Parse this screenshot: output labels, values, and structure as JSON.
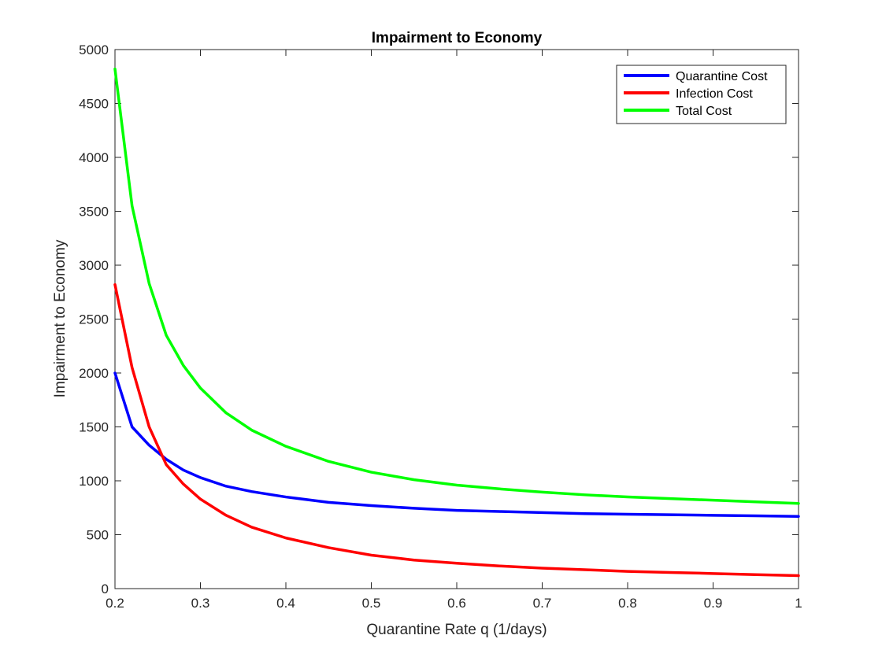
{
  "chart_data": {
    "type": "line",
    "title": "Impairment to Economy",
    "xlabel": "Quarantine Rate q (1/days)",
    "ylabel": "Impairment to Economy",
    "xlim": [
      0.2,
      1
    ],
    "ylim": [
      0,
      5000
    ],
    "xticks": [
      "0.2",
      "0.3",
      "0.4",
      "0.5",
      "0.6",
      "0.7",
      "0.8",
      "0.9",
      "1"
    ],
    "yticks": [
      "0",
      "500",
      "1000",
      "1500",
      "2000",
      "2500",
      "3000",
      "3500",
      "4000",
      "4500",
      "5000"
    ],
    "grid": false,
    "legend_position": "top-right",
    "x": [
      0.2,
      0.22,
      0.24,
      0.26,
      0.28,
      0.3,
      0.33,
      0.36,
      0.4,
      0.45,
      0.5,
      0.55,
      0.6,
      0.65,
      0.7,
      0.75,
      0.8,
      0.85,
      0.9,
      0.95,
      1.0
    ],
    "series": [
      {
        "name": "Quarantine Cost",
        "color": "#0000ff",
        "values": [
          2000,
          1500,
          1330,
          1200,
          1100,
          1030,
          950,
          900,
          850,
          800,
          770,
          745,
          725,
          715,
          705,
          695,
          690,
          685,
          680,
          675,
          670
        ]
      },
      {
        "name": "Infection Cost",
        "color": "#ff0000",
        "values": [
          2820,
          2050,
          1500,
          1150,
          970,
          830,
          680,
          570,
          470,
          380,
          310,
          265,
          235,
          210,
          190,
          175,
          160,
          150,
          140,
          130,
          120
        ]
      },
      {
        "name": "Total Cost",
        "color": "#00ff00",
        "values": [
          4820,
          3550,
          2830,
          2350,
          2070,
          1860,
          1630,
          1470,
          1320,
          1180,
          1080,
          1010,
          960,
          925,
          895,
          870,
          850,
          835,
          820,
          805,
          790
        ]
      }
    ]
  }
}
